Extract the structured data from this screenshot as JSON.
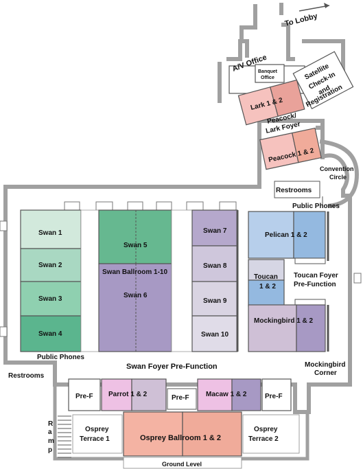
{
  "title": "",
  "colors": {
    "wall": "#a0a0a0",
    "sage_light": "#d2e9dc",
    "sage": "#a9d8c2",
    "sage_mid": "#8fd0b0",
    "green": "#66b890",
    "teal": "#5bb58e",
    "purple": "#a799c4",
    "lavender": "#b5a8cc",
    "lavender_light": "#cfc7dc",
    "grey_lavender": "#d9d4e2",
    "blue": "#94b9e0",
    "blue_light": "#b7cfeb",
    "pink": "#f6c2be",
    "salmon": "#f0ab9a",
    "salmon_dark": "#e8998a",
    "magenta_light": "#eec1e4",
    "mauve": "#cfc0d6",
    "peach": "#f4b3a3"
  },
  "labels": {
    "to_lobby": "To Lobby",
    "av_office": "A/V  Office",
    "banquet_office_1": "Banquet",
    "banquet_office_2": "Office",
    "lark": "Lark 1 & 2",
    "satellite_1": "Satellite",
    "satellite_2": "Check-In",
    "satellite_3": "and",
    "satellite_4": "Registration",
    "peacock_lark_foyer_1": "Peacock/",
    "peacock_lark_foyer_2": "Lark Foyer",
    "peacock": "Peacock 1 & 2",
    "convention_circle_1": "Convention",
    "convention_circle_2": "Circle",
    "restrooms_top": "Restrooms",
    "public_phones_top": "Public Phones",
    "swan_1": "Swan 1",
    "swan_2": "Swan 2",
    "swan_3": "Swan 3",
    "swan_4": "Swan 4",
    "swan_5": "Swan 5",
    "swan_ballroom": "Swan Ballroom 1-10",
    "swan_6": "Swan 6",
    "swan_7": "Swan 7",
    "swan_8": "Swan 8",
    "swan_9": "Swan 9",
    "swan_10": "Swan 10",
    "pelican": "Pelican 1 & 2",
    "toucan_1": "Toucan",
    "toucan_2": "1 & 2",
    "toucan_foyer_1": "Toucan Foyer",
    "toucan_foyer_2": "Pre-Function",
    "mockingbird": "Mockingbird 1 & 2",
    "public_phones_bottom": "Public Phones",
    "swan_foyer": "Swan Foyer Pre-Function",
    "mockingbird_corner_1": "Mockingbird",
    "mockingbird_corner_2": "Corner",
    "restrooms_bottom": "Restrooms",
    "pre_f_left": "Pre-F",
    "parrot": "Parrot 1 & 2",
    "pre_f_center": "Pre-F",
    "macaw": "Macaw 1 & 2",
    "pre_f_right": "Pre-F",
    "ramp_r": "R",
    "ramp_a": "a",
    "ramp_m": "m",
    "ramp_p": "p",
    "osprey_terrace_1a": "Osprey",
    "osprey_terrace_1b": "Terrace 1",
    "osprey_ballroom": "Osprey Ballroom 1 & 2",
    "osprey_terrace_2a": "Osprey",
    "osprey_terrace_2b": "Terrace 2",
    "ground_level": "Ground Level"
  }
}
